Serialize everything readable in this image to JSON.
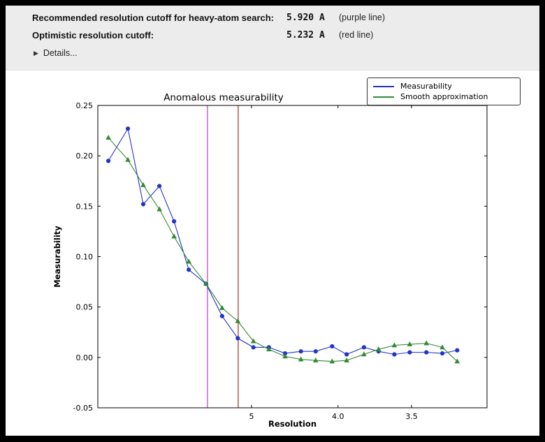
{
  "panel": {
    "row1": {
      "label": "Recommended resolution cutoff for heavy-atom search:",
      "value": "5.920 A",
      "note": "(purple line)"
    },
    "row2": {
      "label": "Optimistic resolution cutoff:",
      "value": "5.232 A",
      "note": "(red line)"
    },
    "details_label": "Details..."
  },
  "chart_data": {
    "type": "line",
    "title": "Anomalous measurability",
    "xlabel": "Resolution",
    "ylabel": "Measurability",
    "ylim": [
      -0.05,
      0.25
    ],
    "yticks": [
      -0.05,
      0.0,
      0.05,
      0.1,
      0.15,
      0.2,
      0.25
    ],
    "xticks": [
      {
        "d": 5.0,
        "label": "5"
      },
      {
        "d": 4.0,
        "label": "4.0"
      },
      {
        "d": 3.5,
        "label": "3.5"
      }
    ],
    "x_axis_note": "resolution in Angstrom, scale linear in 1/d^2, decreasing d to the right",
    "x_resolution_A": [
      19.1,
      11.3,
      9.2,
      7.9,
      7.1,
      6.5,
      5.96,
      5.56,
      5.24,
      4.97,
      4.74,
      4.53,
      4.35,
      4.2,
      4.05,
      3.93,
      3.8,
      3.7,
      3.6,
      3.51,
      3.42,
      3.34,
      3.27
    ],
    "series": [
      {
        "name": "Measurability",
        "color": "#2233cc",
        "marker": "circle",
        "values": [
          0.195,
          0.227,
          0.152,
          0.17,
          0.135,
          0.087,
          0.073,
          0.041,
          0.019,
          0.01,
          0.01,
          0.004,
          0.006,
          0.006,
          0.011,
          0.003,
          0.01,
          0.006,
          0.003,
          0.005,
          0.005,
          0.004,
          0.007
        ]
      },
      {
        "name": "Smooth approximation",
        "color": "#338a33",
        "marker": "triangle",
        "values": [
          0.218,
          0.196,
          0.171,
          0.147,
          0.12,
          0.095,
          0.073,
          0.049,
          0.036,
          0.016,
          0.008,
          0.001,
          -0.002,
          -0.003,
          -0.004,
          -0.003,
          0.003,
          0.008,
          0.012,
          0.013,
          0.014,
          0.01,
          -0.004
        ]
      }
    ],
    "vlines": [
      {
        "resolution_A": 5.92,
        "color": "#bf3fbf",
        "name": "purple-line"
      },
      {
        "resolution_A": 5.232,
        "color": "#993326",
        "name": "red-line"
      }
    ],
    "legend_position": "top-right",
    "grid": false
  }
}
